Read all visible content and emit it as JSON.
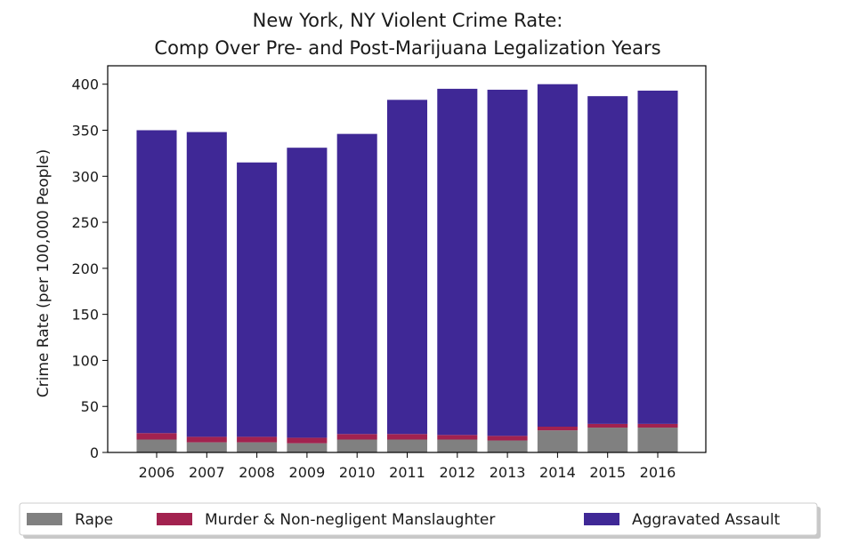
{
  "chart_data": {
    "type": "bar",
    "stacked": true,
    "title": [
      "New York, NY Violent Crime Rate:",
      "Comp Over Pre- and Post-Marijuana Legalization Years"
    ],
    "xlabel": "",
    "ylabel": "Crime Rate (per 100,000 People)",
    "ylim": [
      0,
      420
    ],
    "yticks": [
      0,
      50,
      100,
      150,
      200,
      250,
      300,
      350,
      400
    ],
    "grid": false,
    "legend_position": "bottom",
    "categories": [
      "2006",
      "2007",
      "2008",
      "2009",
      "2010",
      "2011",
      "2012",
      "2013",
      "2014",
      "2015",
      "2016"
    ],
    "series": [
      {
        "name": "Rape",
        "color": "#808080",
        "values": [
          14,
          11,
          11,
          10,
          14,
          14,
          14,
          13,
          24,
          27,
          27
        ]
      },
      {
        "name": "Murder & Non-negligent Manslaughter",
        "color": "#a2224f",
        "values": [
          7,
          6,
          6,
          6,
          6,
          6,
          5,
          5,
          4,
          4,
          4
        ]
      },
      {
        "name": "Aggravated Assault",
        "color": "#3f2896",
        "values": [
          329,
          331,
          298,
          315,
          326,
          363,
          376,
          376,
          372,
          356,
          362
        ]
      }
    ]
  }
}
